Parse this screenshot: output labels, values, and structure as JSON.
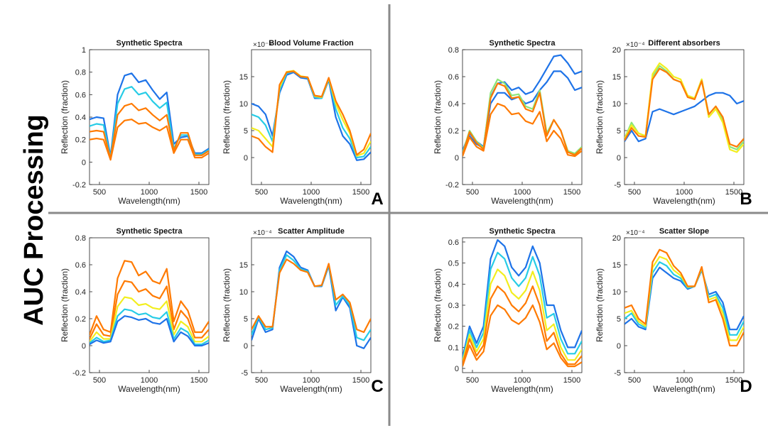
{
  "side_title": "AUC Processing",
  "colors": {
    "blue": "#1e73e8",
    "cyan": "#27cce6",
    "green": "#8ae67a",
    "yellow": "#f2ee1e",
    "orange": "#ff7a00"
  },
  "panels": [
    {
      "letter": "A"
    },
    {
      "letter": "B"
    },
    {
      "letter": "C"
    },
    {
      "letter": "D"
    }
  ],
  "chart_data": [
    {
      "id": "A-left",
      "panel": 0,
      "side": "left",
      "type": "line",
      "title": "Synthetic Spectra",
      "xlabel": "Wavelength(nm)",
      "ylabel": "Reflection (fraction)",
      "xlim": [
        400,
        1600
      ],
      "ylim": [
        -0.2,
        1
      ],
      "exponent": "",
      "xticks": [
        500,
        1000,
        1500
      ],
      "xticklabels": [
        "500",
        "1000",
        "1500"
      ],
      "yticks": [
        -0.2,
        0,
        0.2,
        0.4,
        0.6,
        0.8,
        1
      ],
      "yticklabels": [
        "-0.2",
        "0",
        "0.2",
        "0.4",
        "0.6",
        "0.8",
        "1"
      ],
      "series": [
        {
          "color": "blue",
          "values": [
            0.38,
            0.4,
            0.39,
            0.05,
            0.6,
            0.77,
            0.79,
            0.71,
            0.73,
            0.64,
            0.56,
            0.62,
            0.16,
            0.22,
            0.23,
            0.08,
            0.08,
            0.12
          ]
        },
        {
          "color": "cyan",
          "values": [
            0.32,
            0.34,
            0.33,
            0.04,
            0.52,
            0.65,
            0.67,
            0.6,
            0.62,
            0.54,
            0.48,
            0.53,
            0.12,
            0.24,
            0.24,
            0.07,
            0.07,
            0.11
          ]
        },
        {
          "color": "orange",
          "values": [
            0.27,
            0.28,
            0.27,
            0.03,
            0.42,
            0.5,
            0.52,
            0.46,
            0.48,
            0.42,
            0.37,
            0.42,
            0.1,
            0.26,
            0.26,
            0.06,
            0.06,
            0.1
          ]
        },
        {
          "color": "orange",
          "values": [
            0.2,
            0.21,
            0.2,
            0.02,
            0.31,
            0.37,
            0.38,
            0.34,
            0.35,
            0.31,
            0.28,
            0.32,
            0.08,
            0.2,
            0.2,
            0.04,
            0.04,
            0.08
          ]
        }
      ]
    },
    {
      "id": "A-right",
      "panel": 0,
      "side": "right",
      "type": "line",
      "title": "Blood Volume Fraction",
      "xlabel": "Wavelength(nm)",
      "ylabel": "Reflection (fraction)",
      "xlim": [
        400,
        1600
      ],
      "ylim": [
        -5,
        20
      ],
      "exponent": "×10⁻⁴",
      "xticks": [
        500,
        1000,
        1500
      ],
      "xticklabels": [
        "500",
        "1000",
        "1500"
      ],
      "yticks": [
        0,
        5,
        10,
        15
      ],
      "yticklabels": [
        "0",
        "5",
        "10",
        "15"
      ],
      "series": [
        {
          "color": "blue",
          "values": [
            10.0,
            9.5,
            8.0,
            4.0,
            12.0,
            15.3,
            15.8,
            14.8,
            14.6,
            11.0,
            11.0,
            14.4,
            7.5,
            4.0,
            2.5,
            -0.5,
            -0.3,
            1.0
          ]
        },
        {
          "color": "cyan",
          "values": [
            8.0,
            7.5,
            6.0,
            3.0,
            12.5,
            15.6,
            16.0,
            15.0,
            14.8,
            11.2,
            11.0,
            14.6,
            9.0,
            5.5,
            3.5,
            0.0,
            0.2,
            2.0
          ]
        },
        {
          "color": "yellow",
          "values": [
            5.5,
            5.0,
            3.5,
            2.0,
            13.0,
            15.9,
            16.1,
            15.1,
            14.9,
            11.4,
            11.2,
            14.7,
            10.0,
            7.0,
            4.5,
            0.3,
            0.8,
            3.0
          ]
        },
        {
          "color": "orange",
          "values": [
            4.0,
            3.5,
            2.0,
            1.0,
            13.5,
            15.8,
            16.0,
            15.0,
            14.9,
            11.5,
            11.3,
            14.8,
            10.5,
            8.0,
            5.0,
            0.5,
            1.5,
            4.5
          ]
        }
      ]
    },
    {
      "id": "B-left",
      "panel": 1,
      "side": "left",
      "type": "line",
      "title": "Synthetic Spectra",
      "xlabel": "Wavelength(nm)",
      "ylabel": "Reflection (fraction)",
      "xlim": [
        400,
        1600
      ],
      "ylim": [
        -0.2,
        0.8
      ],
      "exponent": "",
      "xticks": [
        500,
        1000,
        1500
      ],
      "xticklabels": [
        "500",
        "1000",
        "1500"
      ],
      "yticks": [
        -0.2,
        0,
        0.2,
        0.4,
        0.6,
        0.8
      ],
      "yticklabels": [
        "-0.2",
        "0",
        "0.2",
        "0.4",
        "0.6",
        "0.8"
      ],
      "series": [
        {
          "color": "blue",
          "values": [
            0.05,
            0.18,
            0.12,
            0.08,
            0.45,
            0.55,
            0.56,
            0.5,
            0.52,
            0.47,
            0.49,
            0.57,
            0.66,
            0.75,
            0.76,
            0.7,
            0.62,
            0.64
          ]
        },
        {
          "color": "blue",
          "values": [
            0.04,
            0.16,
            0.1,
            0.07,
            0.4,
            0.48,
            0.48,
            0.43,
            0.45,
            0.4,
            0.42,
            0.5,
            0.56,
            0.64,
            0.64,
            0.59,
            0.5,
            0.52
          ]
        },
        {
          "color": "green",
          "values": [
            0.03,
            0.2,
            0.12,
            0.07,
            0.48,
            0.58,
            0.55,
            0.46,
            0.47,
            0.38,
            0.36,
            0.5,
            0.18,
            0.28,
            0.2,
            0.05,
            0.03,
            0.08
          ]
        },
        {
          "color": "orange",
          "values": [
            0.02,
            0.19,
            0.11,
            0.06,
            0.44,
            0.55,
            0.53,
            0.44,
            0.45,
            0.36,
            0.34,
            0.48,
            0.16,
            0.28,
            0.2,
            0.04,
            0.02,
            0.07
          ]
        },
        {
          "color": "orange",
          "values": [
            0.01,
            0.15,
            0.08,
            0.05,
            0.32,
            0.4,
            0.38,
            0.32,
            0.33,
            0.27,
            0.25,
            0.34,
            0.12,
            0.2,
            0.14,
            0.02,
            0.01,
            0.05
          ]
        }
      ]
    },
    {
      "id": "B-right",
      "panel": 1,
      "side": "right",
      "type": "line",
      "title": "Different absorbers",
      "xlabel": "Wavelength(nm)",
      "ylabel": "Reflection (fraction)",
      "xlim": [
        400,
        1600
      ],
      "ylim": [
        -5,
        20
      ],
      "exponent": "×10⁻⁴",
      "xticks": [
        500,
        1000,
        1500
      ],
      "xticklabels": [
        "500",
        "1000",
        "1500"
      ],
      "yticks": [
        -5,
        0,
        5,
        10,
        15,
        20
      ],
      "yticklabels": [
        "-5",
        "0",
        "5",
        "10",
        "15",
        "20"
      ],
      "series": [
        {
          "color": "blue",
          "values": [
            3.0,
            5.0,
            3.0,
            3.5,
            8.5,
            9.0,
            8.5,
            8.0,
            8.5,
            9.0,
            9.5,
            10.5,
            11.5,
            12.0,
            12.0,
            11.5,
            10.0,
            10.5
          ]
        },
        {
          "color": "green",
          "values": [
            3.5,
            6.5,
            4.5,
            4.0,
            15.0,
            17.0,
            16.0,
            14.5,
            14.0,
            11.5,
            11.0,
            14.5,
            8.0,
            9.5,
            7.0,
            2.0,
            1.5,
            3.0
          ]
        },
        {
          "color": "yellow",
          "values": [
            3.5,
            6.0,
            4.5,
            4.0,
            15.5,
            17.5,
            16.5,
            15.0,
            14.5,
            11.5,
            11.0,
            14.5,
            7.5,
            9.0,
            6.5,
            1.5,
            1.0,
            2.5
          ]
        },
        {
          "color": "orange",
          "values": [
            3.2,
            5.5,
            4.0,
            3.8,
            14.5,
            16.5,
            15.8,
            14.5,
            14.0,
            11.2,
            10.8,
            14.2,
            8.0,
            9.5,
            7.5,
            2.5,
            2.0,
            3.5
          ]
        }
      ]
    },
    {
      "id": "C-left",
      "panel": 2,
      "side": "left",
      "type": "line",
      "title": "Synthetic Spectra",
      "xlabel": "Wavelength(nm)",
      "ylabel": "Reflection (fraction)",
      "xlim": [
        400,
        1600
      ],
      "ylim": [
        -0.2,
        0.8
      ],
      "exponent": "",
      "xticks": [
        500,
        1000,
        1500
      ],
      "xticklabels": [
        "500",
        "1000",
        "1500"
      ],
      "yticks": [
        -0.2,
        0,
        0.2,
        0.4,
        0.6,
        0.8
      ],
      "yticklabels": [
        "-0.2",
        "0",
        "0.2",
        "0.4",
        "0.6",
        "0.8"
      ],
      "series": [
        {
          "color": "orange",
          "values": [
            0.08,
            0.22,
            0.12,
            0.1,
            0.5,
            0.63,
            0.62,
            0.52,
            0.55,
            0.48,
            0.46,
            0.57,
            0.18,
            0.33,
            0.26,
            0.1,
            0.1,
            0.18
          ]
        },
        {
          "color": "orange",
          "values": [
            0.05,
            0.16,
            0.08,
            0.07,
            0.38,
            0.48,
            0.47,
            0.4,
            0.42,
            0.37,
            0.35,
            0.44,
            0.12,
            0.26,
            0.2,
            0.06,
            0.06,
            0.12
          ]
        },
        {
          "color": "yellow",
          "values": [
            0.03,
            0.1,
            0.05,
            0.05,
            0.29,
            0.36,
            0.35,
            0.3,
            0.31,
            0.28,
            0.27,
            0.33,
            0.08,
            0.18,
            0.14,
            0.03,
            0.03,
            0.07
          ]
        },
        {
          "color": "cyan",
          "values": [
            0.02,
            0.06,
            0.03,
            0.04,
            0.22,
            0.27,
            0.26,
            0.23,
            0.24,
            0.21,
            0.2,
            0.25,
            0.05,
            0.13,
            0.1,
            0.01,
            0.01,
            0.04
          ]
        },
        {
          "color": "blue",
          "values": [
            0.01,
            0.04,
            0.02,
            0.03,
            0.18,
            0.22,
            0.21,
            0.19,
            0.2,
            0.17,
            0.16,
            0.2,
            0.03,
            0.1,
            0.07,
            0.0,
            0.0,
            0.02
          ]
        }
      ]
    },
    {
      "id": "C-right",
      "panel": 2,
      "side": "right",
      "type": "line",
      "title": "Scatter Amplitude",
      "xlabel": "Wavelength(nm)",
      "ylabel": "Reflection (fraction)",
      "xlim": [
        400,
        1600
      ],
      "ylim": [
        -5,
        20
      ],
      "exponent": "×10⁻⁴",
      "xticks": [
        500,
        1000,
        1500
      ],
      "xticklabels": [
        "500",
        "1000",
        "1500"
      ],
      "yticks": [
        -5,
        0,
        5,
        10,
        15
      ],
      "yticklabels": [
        "-5",
        "0",
        "5",
        "10",
        "15"
      ],
      "series": [
        {
          "color": "blue",
          "values": [
            1.0,
            5.0,
            2.5,
            3.0,
            14.5,
            17.5,
            16.5,
            14.5,
            14.0,
            11.0,
            11.0,
            14.8,
            6.5,
            9.0,
            7.0,
            0.0,
            -0.5,
            1.5
          ]
        },
        {
          "color": "cyan",
          "values": [
            2.0,
            5.3,
            3.0,
            3.3,
            14.0,
            16.8,
            15.8,
            14.2,
            13.8,
            11.0,
            11.1,
            15.0,
            7.5,
            9.2,
            7.5,
            1.5,
            1.0,
            3.0
          ]
        },
        {
          "color": "orange",
          "values": [
            3.0,
            5.5,
            3.5,
            3.5,
            13.5,
            16.0,
            15.2,
            14.0,
            13.6,
            11.0,
            11.2,
            15.2,
            8.5,
            9.5,
            8.0,
            3.0,
            2.5,
            5.0
          ]
        }
      ]
    },
    {
      "id": "D-left",
      "panel": 3,
      "side": "left",
      "type": "line",
      "title": "Synthetic Spectra",
      "xlabel": "Wavelength(nm)",
      "ylabel": "Reflection (fraction)",
      "xlim": [
        400,
        1600
      ],
      "ylim": [
        -0.02,
        0.62
      ],
      "exponent": "",
      "xticks": [
        500,
        1000,
        1500
      ],
      "xticklabels": [
        "500",
        "1000",
        "1500"
      ],
      "yticks": [
        0,
        0.1,
        0.2,
        0.3,
        0.4,
        0.5,
        0.6
      ],
      "yticklabels": [
        "0",
        "0.1",
        "0.2",
        "0.3",
        "0.4",
        "0.5",
        "0.6"
      ],
      "series": [
        {
          "color": "blue",
          "values": [
            0.05,
            0.2,
            0.12,
            0.2,
            0.52,
            0.61,
            0.58,
            0.48,
            0.44,
            0.48,
            0.58,
            0.5,
            0.3,
            0.3,
            0.18,
            0.1,
            0.1,
            0.18
          ]
        },
        {
          "color": "cyan",
          "values": [
            0.04,
            0.18,
            0.1,
            0.17,
            0.47,
            0.55,
            0.52,
            0.43,
            0.39,
            0.43,
            0.53,
            0.44,
            0.24,
            0.26,
            0.14,
            0.07,
            0.07,
            0.13
          ]
        },
        {
          "color": "yellow",
          "values": [
            0.03,
            0.16,
            0.08,
            0.14,
            0.4,
            0.47,
            0.44,
            0.36,
            0.33,
            0.37,
            0.46,
            0.37,
            0.18,
            0.21,
            0.1,
            0.04,
            0.04,
            0.09
          ]
        },
        {
          "color": "orange",
          "values": [
            0.02,
            0.14,
            0.06,
            0.11,
            0.33,
            0.39,
            0.36,
            0.3,
            0.27,
            0.31,
            0.39,
            0.3,
            0.13,
            0.17,
            0.07,
            0.02,
            0.02,
            0.06
          ]
        },
        {
          "color": "orange",
          "values": [
            0.01,
            0.11,
            0.04,
            0.08,
            0.25,
            0.3,
            0.28,
            0.23,
            0.21,
            0.24,
            0.3,
            0.22,
            0.09,
            0.12,
            0.05,
            0.01,
            0.01,
            0.03
          ]
        }
      ]
    },
    {
      "id": "D-right",
      "panel": 3,
      "side": "right",
      "type": "line",
      "title": "Scatter Slope",
      "xlabel": "Wavelength(nm)",
      "ylabel": "Reflection (fraction)",
      "xlim": [
        400,
        1600
      ],
      "ylim": [
        -5,
        20
      ],
      "exponent": "×10⁻⁴",
      "xticks": [
        500,
        1000,
        1500
      ],
      "xticklabels": [
        "500",
        "1000",
        "1500"
      ],
      "yticks": [
        -5,
        0,
        5,
        10,
        15,
        20
      ],
      "yticklabels": [
        "-5",
        "0",
        "5",
        "10",
        "15",
        "20"
      ],
      "series": [
        {
          "color": "blue",
          "values": [
            4.0,
            5.0,
            3.5,
            3.0,
            12.5,
            14.5,
            13.5,
            12.5,
            12.0,
            10.5,
            11.0,
            14.0,
            9.5,
            10.0,
            8.0,
            3.0,
            3.0,
            5.5
          ]
        },
        {
          "color": "cyan",
          "values": [
            5.0,
            6.0,
            4.0,
            3.3,
            13.5,
            15.5,
            14.8,
            13.2,
            12.5,
            10.7,
            11.0,
            14.2,
            9.0,
            9.5,
            7.0,
            2.0,
            2.0,
            4.5
          ]
        },
        {
          "color": "yellow",
          "values": [
            6.0,
            6.5,
            4.5,
            3.6,
            14.5,
            16.5,
            16.0,
            14.0,
            13.0,
            10.9,
            11.0,
            14.4,
            8.5,
            9.0,
            6.0,
            1.0,
            1.0,
            3.5
          ]
        },
        {
          "color": "orange",
          "values": [
            7.0,
            7.5,
            5.0,
            4.0,
            15.5,
            17.8,
            17.2,
            14.8,
            13.5,
            11.0,
            11.0,
            14.6,
            8.0,
            8.5,
            5.0,
            0.0,
            0.0,
            2.5
          ]
        }
      ]
    }
  ]
}
